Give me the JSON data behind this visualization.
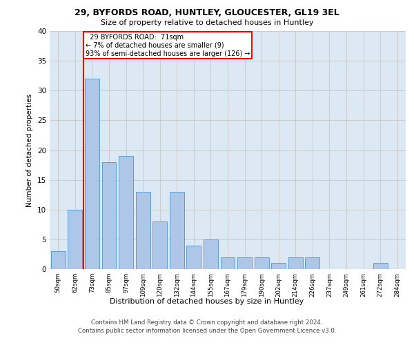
{
  "title1": "29, BYFORDS ROAD, HUNTLEY, GLOUCESTER, GL19 3EL",
  "title2": "Size of property relative to detached houses in Huntley",
  "xlabel": "Distribution of detached houses by size in Huntley",
  "ylabel": "Number of detached properties",
  "categories": [
    "50sqm",
    "62sqm",
    "73sqm",
    "85sqm",
    "97sqm",
    "109sqm",
    "120sqm",
    "132sqm",
    "144sqm",
    "155sqm",
    "167sqm",
    "179sqm",
    "190sqm",
    "202sqm",
    "214sqm",
    "226sqm",
    "237sqm",
    "249sqm",
    "261sqm",
    "272sqm",
    "284sqm"
  ],
  "values": [
    3,
    10,
    32,
    18,
    19,
    13,
    8,
    13,
    4,
    5,
    2,
    2,
    2,
    1,
    2,
    2,
    0,
    0,
    0,
    1,
    0
  ],
  "bar_color": "#aec6e8",
  "bar_edge_color": "#5a9fd4",
  "annotation_text": "  29 BYFORDS ROAD:  71sqm  \n← 7% of detached houses are smaller (9)\n93% of semi-detached houses are larger (126) →",
  "annotation_box_color": "white",
  "annotation_box_edge_color": "red",
  "property_line_color": "red",
  "ylim": [
    0,
    40
  ],
  "yticks": [
    0,
    5,
    10,
    15,
    20,
    25,
    30,
    35,
    40
  ],
  "grid_color": "#cccccc",
  "bg_color": "#dde8f5",
  "footer1": "Contains HM Land Registry data © Crown copyright and database right 2024.",
  "footer2": "Contains public sector information licensed under the Open Government Licence v3.0."
}
